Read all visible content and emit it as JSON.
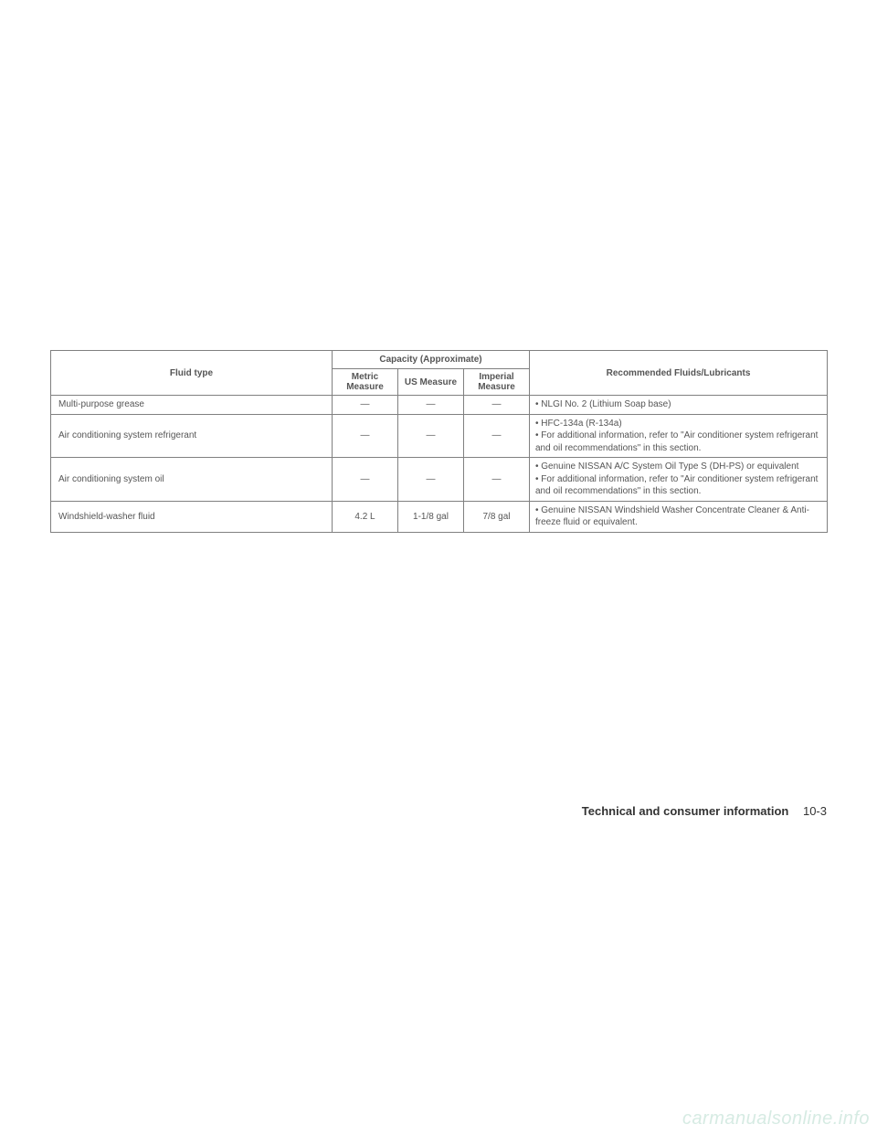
{
  "table": {
    "headers": {
      "fluid_type": "Fluid type",
      "capacity": "Capacity (Approximate)",
      "metric": "Metric Measure",
      "us": "US Measure",
      "imperial": "Imperial Measure",
      "recommended": "Recommended Fluids/Lubricants"
    },
    "rows": [
      {
        "fluid": "Multi-purpose grease",
        "metric": "—",
        "us": "—",
        "imperial": "—",
        "rec": "• NLGI No. 2 (Lithium Soap base)"
      },
      {
        "fluid": "Air conditioning system refrigerant",
        "metric": "—",
        "us": "—",
        "imperial": "—",
        "rec": "• HFC-134a (R-134a)\n• For additional information, refer to \"Air conditioner system refrigerant and oil recommendations\" in this section."
      },
      {
        "fluid": "Air conditioning system oil",
        "metric": "—",
        "us": "—",
        "imperial": "—",
        "rec": "• Genuine NISSAN A/C System Oil Type S (DH-PS) or equivalent\n• For additional information, refer to \"Air conditioner system refrigerant and oil recommendations\" in this section."
      },
      {
        "fluid": "Windshield-washer fluid",
        "metric": "4.2 L",
        "us": "1-1/8 gal",
        "imperial": "7/8 gal",
        "rec": "• Genuine NISSAN Windshield Washer Concentrate Cleaner & Anti-freeze fluid or equivalent."
      }
    ]
  },
  "footer": {
    "title": "Technical and consumer information",
    "page": "10-3"
  },
  "watermark": "carmanualsonline.info",
  "colors": {
    "border": "#808080",
    "text": "#555555",
    "watermark": "#d6ebe3"
  }
}
